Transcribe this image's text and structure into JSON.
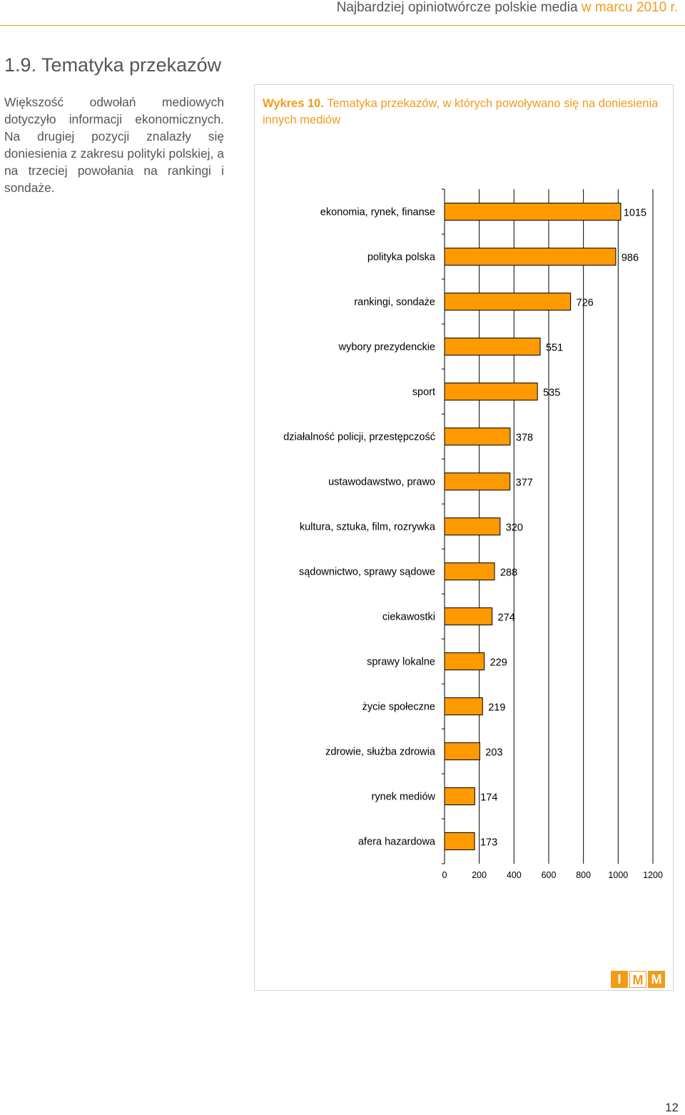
{
  "header": {
    "title_main": "Najbardziej opiniotwórcze polskie media ",
    "title_accent": "w marcu 2010 r."
  },
  "section": {
    "heading": "1.9. Tematyka przekazów",
    "intro": "Większość odwołań mediowych dotyczyło informacji ekonomicznych. Na drugiej pozycji znalazły się doniesienia z zakresu polityki polskiej, a na trzeciej powołania na rankingi i sondaże."
  },
  "chart_caption": {
    "label": "Wykres 10.",
    "text": " Tematyka przekazów, w których powoływano się na doniesienia innych mediów"
  },
  "colors": {
    "bar_fill": "#ff9900",
    "accent": "#f29a1a"
  },
  "chart_data": {
    "type": "bar",
    "orientation": "horizontal",
    "categories": [
      "ekonomia, rynek, finanse",
      "polityka polska",
      "rankingi, sondaże",
      "wybory prezydenckie",
      "sport",
      "działalność policji, przestępczość",
      "ustawodawstwo, prawo",
      "kultura, sztuka, film, rozrywka",
      "sądownictwo, sprawy sądowe",
      "ciekawostki",
      "sprawy lokalne",
      "życie społeczne",
      "zdrowie, służba zdrowia",
      "rynek mediów",
      "afera hazardowa"
    ],
    "values": [
      1015,
      986,
      726,
      551,
      535,
      378,
      377,
      320,
      288,
      274,
      229,
      219,
      203,
      174,
      173
    ],
    "x_ticks": [
      0,
      200,
      400,
      600,
      800,
      1000,
      1200
    ],
    "xlim": [
      0,
      1200
    ],
    "grid": true,
    "data_labels": true
  },
  "logo": {
    "letters": [
      "I",
      "M",
      "M"
    ]
  },
  "page_number": "12"
}
